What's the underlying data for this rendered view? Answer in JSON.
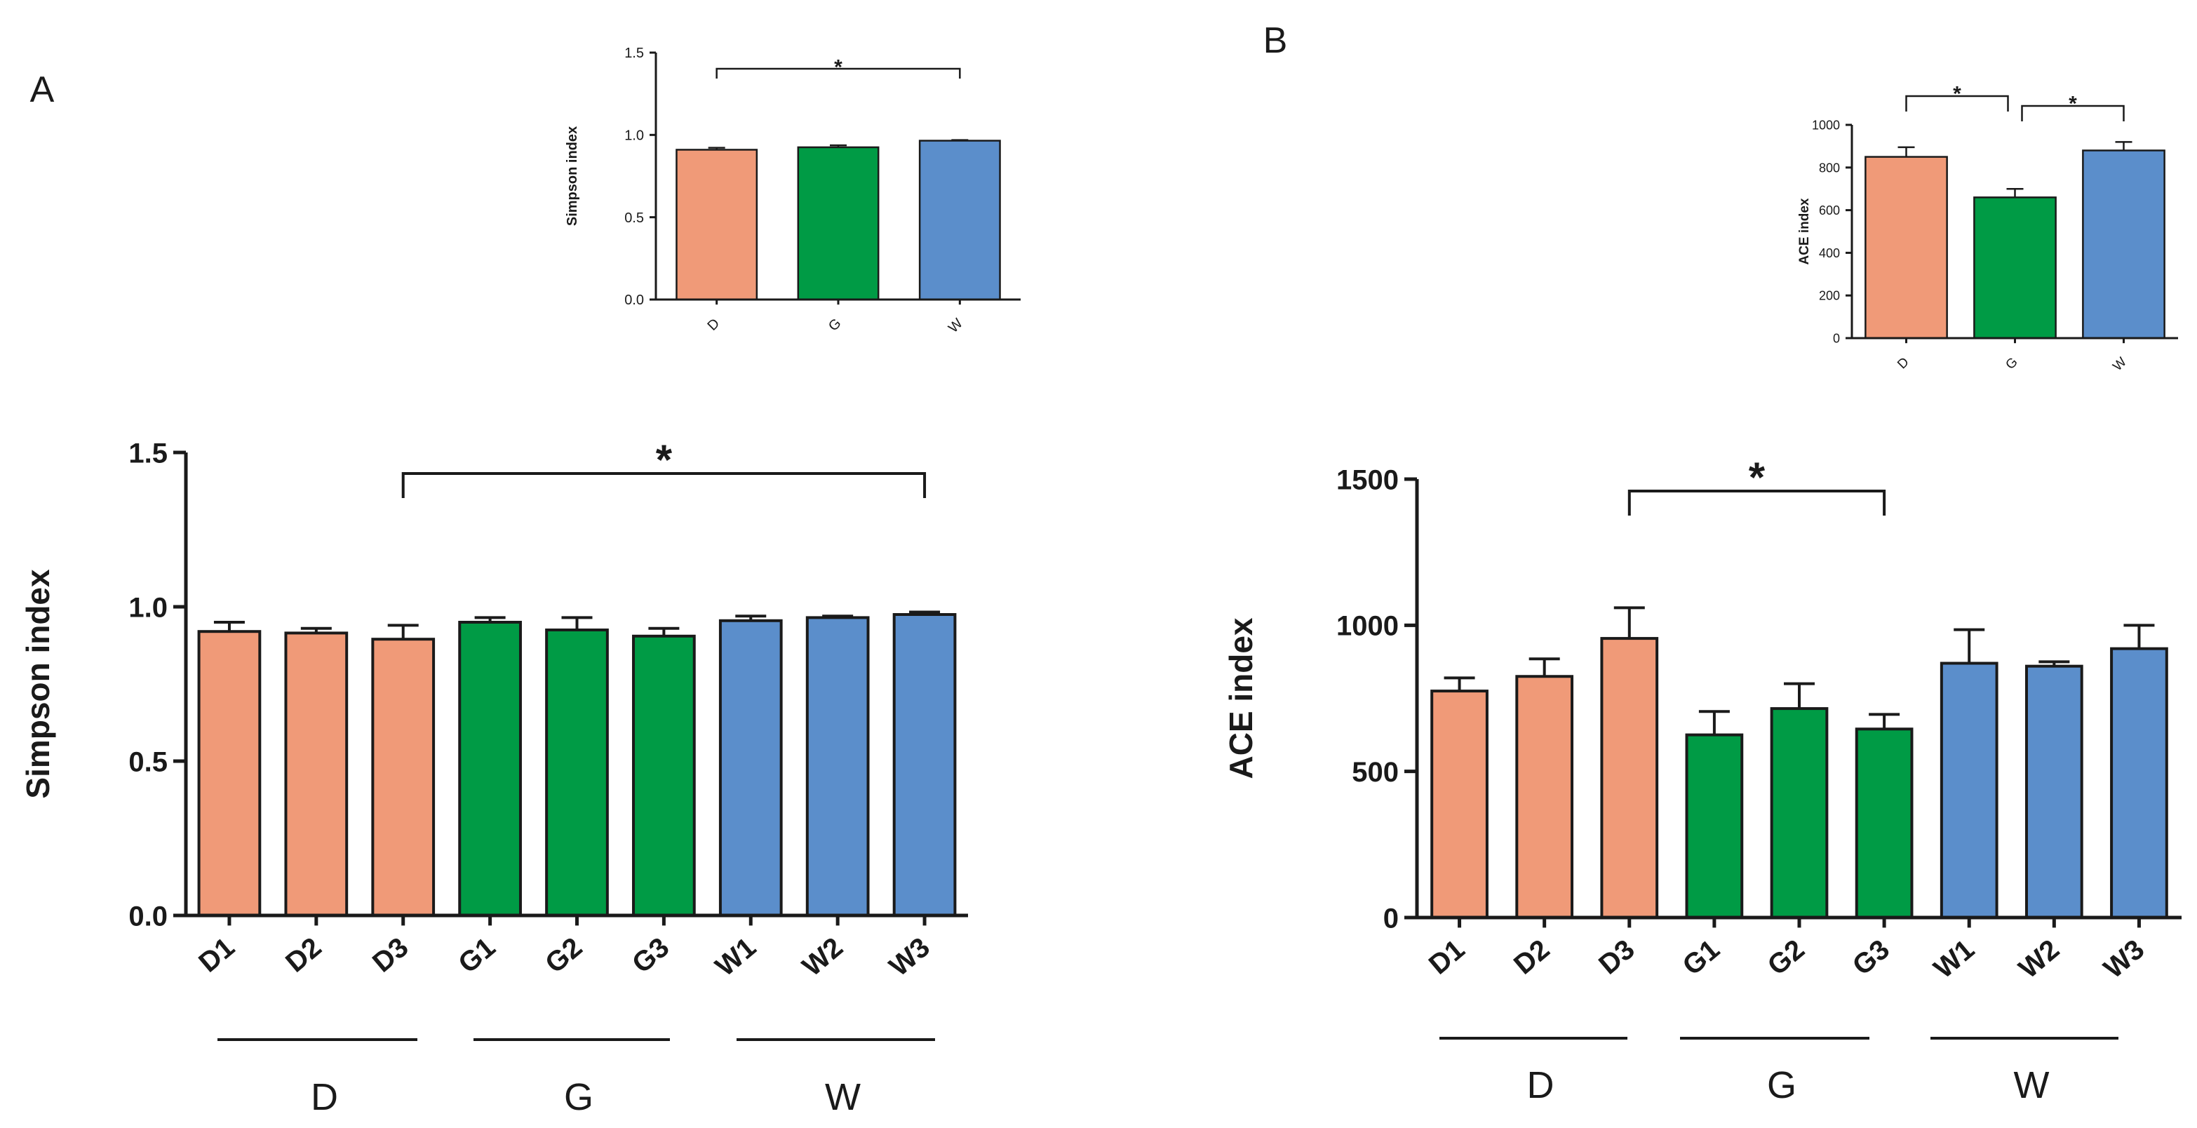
{
  "colors": {
    "D": "#f09a78",
    "G": "#009b45",
    "W": "#5b8ecb",
    "ink": "#1a1a1a"
  },
  "chart_data": [
    {
      "id": "panelA-main",
      "panel": "A",
      "type": "bar",
      "label": "",
      "title": "",
      "xlabel": "",
      "ylabel": "Simpson index",
      "ylim": [
        0,
        1.5
      ],
      "yticks": [
        "0.0",
        "0.5",
        "1.0",
        "1.5"
      ],
      "ytick_values": [
        0,
        0.5,
        1.0,
        1.5
      ],
      "categories": [
        "D1",
        "D2",
        "D3",
        "G1",
        "G2",
        "G3",
        "W1",
        "W2",
        "W3"
      ],
      "groups": [
        "D",
        "D",
        "D",
        "G",
        "G",
        "G",
        "W",
        "W",
        "W"
      ],
      "values": [
        0.92,
        0.915,
        0.895,
        0.95,
        0.925,
        0.905,
        0.955,
        0.965,
        0.975
      ],
      "errors": [
        0.03,
        0.015,
        0.045,
        0.015,
        0.04,
        0.025,
        0.015,
        0.005,
        0.008
      ],
      "group_labels": [
        "D",
        "G",
        "W"
      ],
      "significance": [
        {
          "from": "D3",
          "to": "W3",
          "label": "*"
        }
      ]
    },
    {
      "id": "panelA-inset",
      "panel": "A",
      "type": "bar",
      "label": "A",
      "title": "",
      "xlabel": "",
      "ylabel": "Simpson index",
      "ylim": [
        0,
        1.5
      ],
      "yticks": [
        "0.0",
        "0.5",
        "1.0",
        "1.5"
      ],
      "ytick_values": [
        0,
        0.5,
        1.0,
        1.5
      ],
      "categories": [
        "D",
        "G",
        "W"
      ],
      "groups": [
        "D",
        "G",
        "W"
      ],
      "values": [
        0.91,
        0.925,
        0.965
      ],
      "errors": [
        0.012,
        0.012,
        0.004
      ],
      "significance": [
        {
          "from": "D",
          "to": "W",
          "label": "*"
        }
      ]
    },
    {
      "id": "panelB-main",
      "panel": "B",
      "type": "bar",
      "label": "",
      "title": "",
      "xlabel": "",
      "ylabel": "ACE index",
      "ylim": [
        0,
        1500
      ],
      "yticks": [
        "0",
        "500",
        "1000",
        "1500"
      ],
      "ytick_values": [
        0,
        500,
        1000,
        1500
      ],
      "categories": [
        "D1",
        "D2",
        "D3",
        "G1",
        "G2",
        "G3",
        "W1",
        "W2",
        "W3"
      ],
      "groups": [
        "D",
        "D",
        "D",
        "G",
        "G",
        "G",
        "W",
        "W",
        "W"
      ],
      "values": [
        775,
        825,
        955,
        625,
        715,
        645,
        870,
        860,
        920
      ],
      "errors": [
        45,
        60,
        105,
        80,
        85,
        50,
        115,
        15,
        80
      ],
      "group_labels": [
        "D",
        "G",
        "W"
      ],
      "significance": [
        {
          "from": "D3",
          "to": "G3",
          "label": "*"
        }
      ]
    },
    {
      "id": "panelB-inset",
      "panel": "B",
      "type": "bar",
      "label": "B",
      "title": "",
      "xlabel": "",
      "ylabel": "ACE index",
      "ylim": [
        0,
        1000
      ],
      "yticks": [
        "0",
        "200",
        "400",
        "600",
        "800",
        "1000"
      ],
      "ytick_values": [
        0,
        200,
        400,
        600,
        800,
        1000
      ],
      "categories": [
        "D",
        "G",
        "W"
      ],
      "groups": [
        "D",
        "G",
        "W"
      ],
      "values": [
        850,
        660,
        880
      ],
      "errors": [
        45,
        40,
        40
      ],
      "significance": [
        {
          "from": "D",
          "to": "G",
          "label": "*"
        },
        {
          "from": "G",
          "to": "W",
          "label": "*"
        }
      ]
    }
  ]
}
